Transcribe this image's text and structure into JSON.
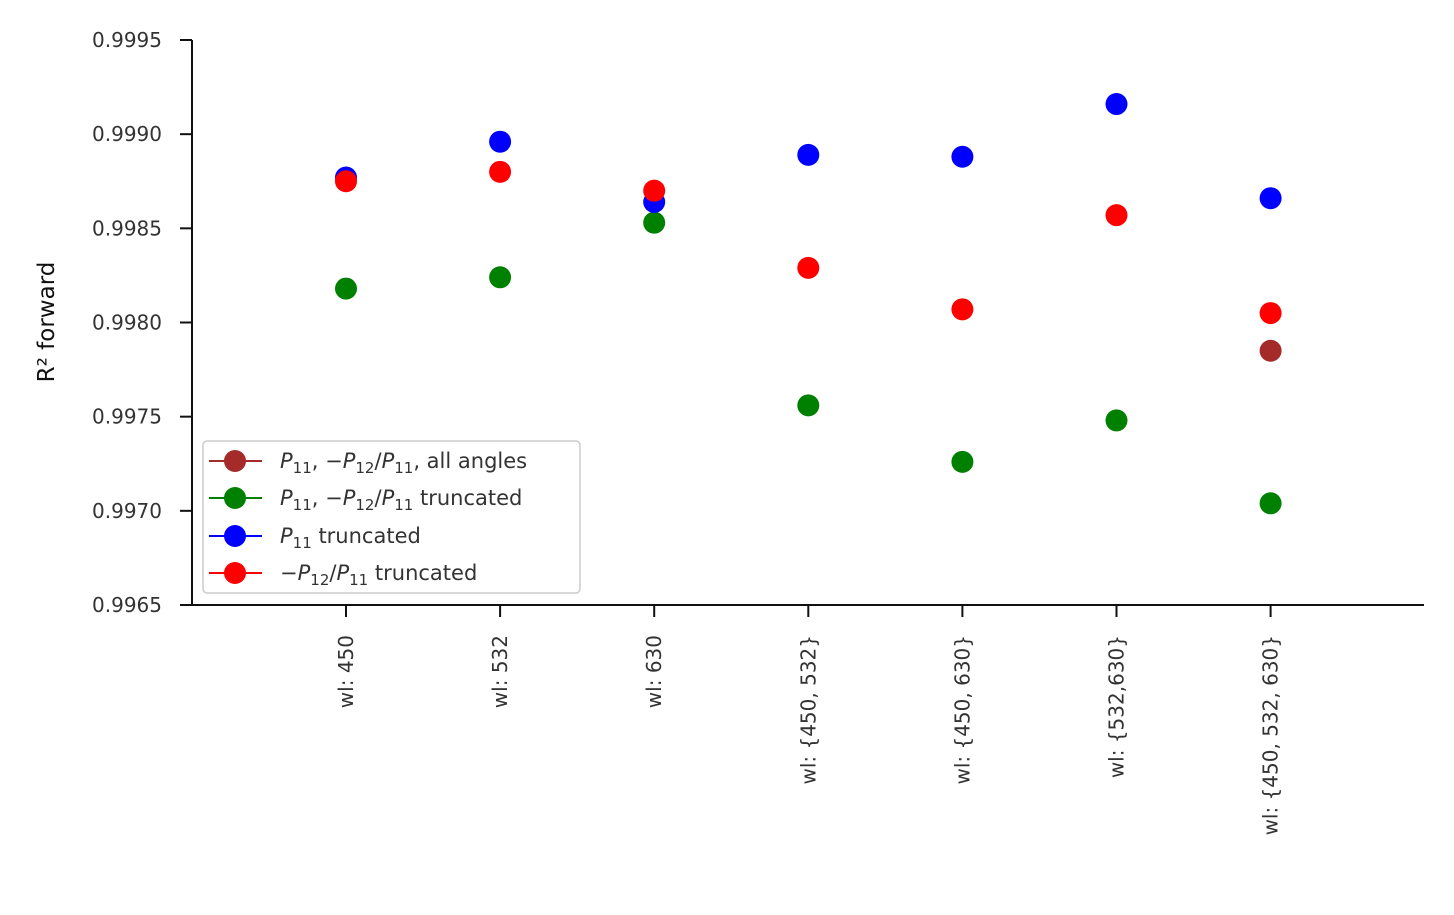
{
  "chart_data": {
    "type": "scatter",
    "ylabel": "R² forward",
    "xlabel": "",
    "ylim": [
      0.9965,
      0.9995
    ],
    "yticks": [
      "0.9995",
      "0.9990",
      "0.9985",
      "0.9980",
      "0.9975",
      "0.9970",
      "0.9965"
    ],
    "categories": [
      "wl: 450",
      "wl: 532",
      "wl: 630",
      "wl: {450, 532}",
      "wl: {450, 630}",
      "wl: {532,630}",
      "wl: {450, 532, 630}"
    ],
    "legend_position": "lower-left",
    "series": [
      {
        "name": "P11, −P12/P11, all angles",
        "color": "#a52a2a",
        "values": [
          null,
          null,
          null,
          null,
          null,
          null,
          0.99785
        ]
      },
      {
        "name": "P11, −P12/P11 truncated",
        "color": "#008000",
        "values": [
          0.99818,
          0.99824,
          0.99853,
          0.99756,
          0.99726,
          0.99748,
          0.99704
        ]
      },
      {
        "name": "P11 truncated",
        "color": "#0000ff",
        "values": [
          0.99877,
          0.99896,
          0.99864,
          0.99889,
          0.99888,
          0.99916,
          0.99866
        ]
      },
      {
        "name": "−P12/P11 truncated",
        "color": "#ff0000",
        "values": [
          0.99875,
          0.9988,
          0.9987,
          0.99829,
          0.99807,
          0.99857,
          0.99805
        ]
      }
    ]
  }
}
